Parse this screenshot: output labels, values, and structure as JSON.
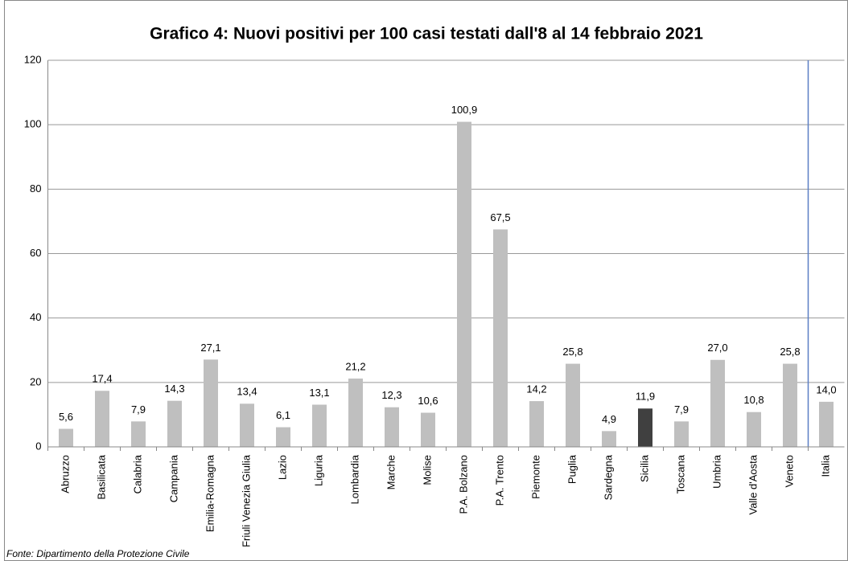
{
  "chart_data": {
    "type": "bar",
    "title": "Grafico 4: Nuovi positivi per 100 casi testati dall'8 al 14 febbraio 2021",
    "source": "Fonte: Dipartimento della Protezione Civile",
    "categories": [
      "Abruzzo",
      "Basilicata",
      "Calabria",
      "Campania",
      "Emilia-Romagna",
      "Friuli Venezia Giulia",
      "Lazio",
      "Liguria",
      "Lombardia",
      "Marche",
      "Molise",
      "P.A. Bolzano",
      "P.A. Trento",
      "Piemonte",
      "Puglia",
      "Sardegna",
      "Sicilia",
      "Toscana",
      "Umbria",
      "Valle d'Aosta",
      "Veneto",
      "Italia"
    ],
    "values": [
      5.6,
      17.4,
      7.9,
      14.3,
      27.1,
      13.4,
      6.1,
      13.1,
      21.2,
      12.3,
      10.6,
      100.9,
      67.5,
      14.2,
      25.8,
      4.9,
      11.9,
      7.9,
      27.0,
      10.8,
      25.8,
      14.0
    ],
    "value_labels": [
      "5,6",
      "17,4",
      "7,9",
      "14,3",
      "27,1",
      "13,4",
      "6,1",
      "13,1",
      "21,2",
      "12,3",
      "10,6",
      "100,9",
      "67,5",
      "14,2",
      "25,8",
      "4,9",
      "11,9",
      "7,9",
      "27,0",
      "10,8",
      "25,8",
      "14,0"
    ],
    "colors": [
      "#bfbfbf",
      "#bfbfbf",
      "#bfbfbf",
      "#bfbfbf",
      "#bfbfbf",
      "#bfbfbf",
      "#bfbfbf",
      "#bfbfbf",
      "#bfbfbf",
      "#bfbfbf",
      "#bfbfbf",
      "#bfbfbf",
      "#bfbfbf",
      "#bfbfbf",
      "#bfbfbf",
      "#bfbfbf",
      "#404040",
      "#bfbfbf",
      "#bfbfbf",
      "#bfbfbf",
      "#bfbfbf",
      "#bfbfbf"
    ],
    "ylim": [
      0,
      120
    ],
    "yticks": [
      0,
      20,
      40,
      60,
      80,
      100,
      120
    ],
    "grid": true
  }
}
